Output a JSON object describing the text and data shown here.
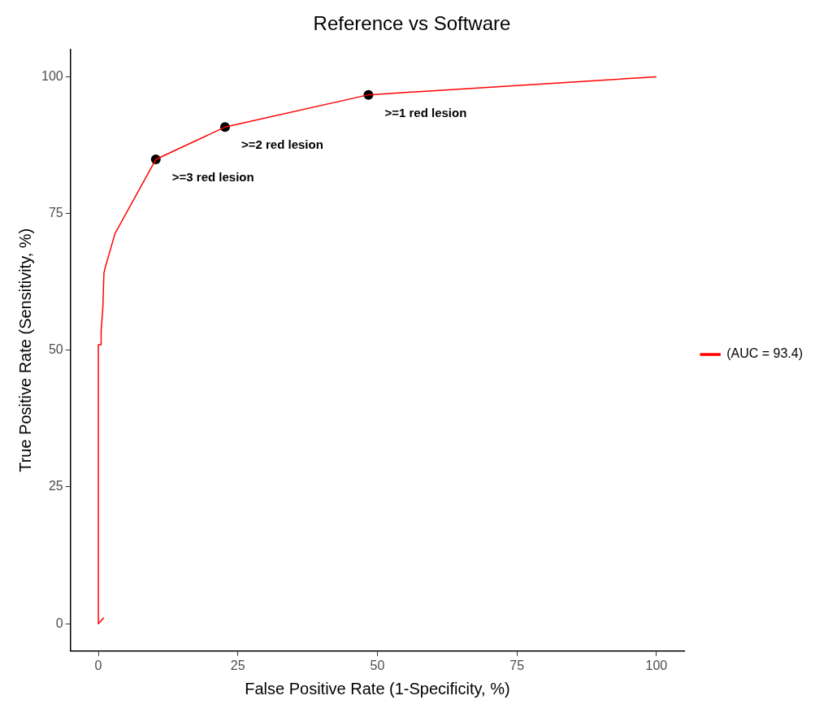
{
  "chart_data": {
    "type": "line",
    "title": "Reference vs Software",
    "xlabel": "False Positive Rate (1-Specificity, %)",
    "ylabel": "True Positive Rate (Sensitivity, %)",
    "xlim": [
      -5,
      105
    ],
    "ylim": [
      -5,
      105
    ],
    "xticks": [
      0,
      25,
      50,
      75,
      100
    ],
    "yticks": [
      0,
      25,
      50,
      75,
      100
    ],
    "grid": false,
    "legend": "right",
    "series": [
      {
        "name": "(AUC = 93.4)",
        "color": "#ff0000",
        "marker": "none",
        "x": [
          1,
          0,
          0,
          0.5,
          0.5,
          0.8,
          1.0,
          1.2,
          3.0,
          3.5,
          10.3,
          22.7,
          48.4,
          100
        ],
        "values": [
          1.1,
          0,
          51,
          51,
          53.6,
          57.6,
          64.1,
          65,
          71.4,
          72.3,
          84.9,
          90.8,
          96.7,
          100
        ]
      },
      {
        "type": "scatter",
        "color": "#000000",
        "marker": "circle",
        "x": [
          10.3,
          22.7,
          48.4
        ],
        "values": [
          84.9,
          90.8,
          96.7
        ]
      }
    ],
    "annotations": [
      {
        "text": ">=3 red lesion",
        "x": 10.3,
        "y": 84.9
      },
      {
        "text": ">=2 red lesion",
        "x": 22.7,
        "y": 90.8
      },
      {
        "text": ">=1 red lesion",
        "x": 48.4,
        "y": 96.7
      }
    ]
  }
}
